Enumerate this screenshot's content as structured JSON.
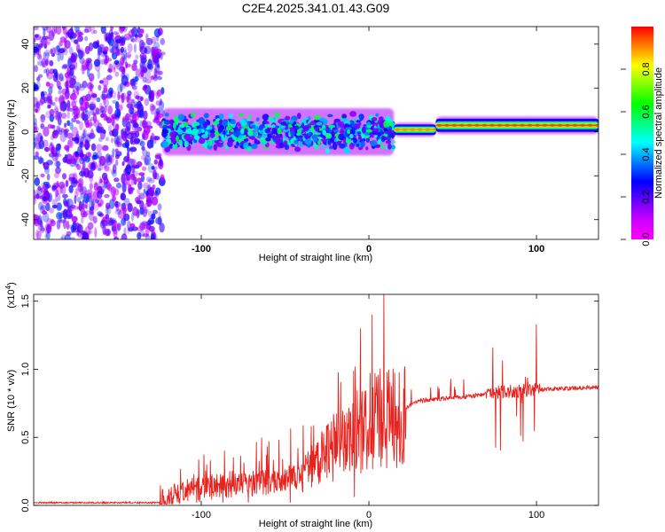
{
  "title": "C2E4.2025.341.01.43.G09",
  "chart_data": [
    {
      "type": "heatmap",
      "name": "spectrogram",
      "xlabel": "Height of straight line (km)",
      "ylabel": "Frequency (Hz)",
      "xlim": [
        -200,
        137
      ],
      "ylim": [
        -49,
        48
      ],
      "xticks": [
        -100,
        0,
        100
      ],
      "yticks": [
        -40,
        -20,
        0,
        20,
        40
      ],
      "colorbar": {
        "label": "Normalized spectral amplitude",
        "range": [
          0,
          1
        ],
        "ticks": [
          0.0,
          0.2,
          0.4,
          0.6,
          0.8
        ],
        "tick_labels": [
          "0.0",
          "0.2",
          "0.4",
          "0.6",
          "0.8"
        ],
        "colors": [
          "#ff00ff",
          "#cc00ff",
          "#6600ff",
          "#0000ff",
          "#0080ff",
          "#00ffff",
          "#00ff80",
          "#00ff00",
          "#80ff00",
          "#ffff00",
          "#ff8000",
          "#ff0000"
        ]
      },
      "regions": [
        {
          "x_range": [
            -200,
            -123
          ],
          "y_range": [
            -49,
            48
          ],
          "description": "scattered noise",
          "amplitude": 0.1
        },
        {
          "x_range": [
            -123,
            15
          ],
          "center_hz": 0,
          "width_hz": 12,
          "amplitude": 0.35
        },
        {
          "x_range": [
            15,
            40
          ],
          "center_hz": 1,
          "width_hz": 4,
          "amplitude": 0.9
        },
        {
          "x_range": [
            40,
            137
          ],
          "center_hz": 3,
          "width_hz": 5,
          "amplitude": 0.95
        }
      ]
    },
    {
      "type": "line",
      "name": "snr",
      "xlabel": "Height of straight line (km)",
      "ylabel": "SNR (10 * v/v)",
      "scale_label": "(x10",
      "scale_exponent": "4",
      "xlim": [
        -200,
        137
      ],
      "ylim": [
        0,
        1.55
      ],
      "xticks": [
        -100,
        0,
        100
      ],
      "yticks": [
        0.0,
        0.5,
        1.0,
        1.5
      ],
      "ytick_labels": [
        "0.0",
        "0.5",
        "1.0",
        "1.5"
      ],
      "line_color": "#e8231e",
      "envelope": [
        {
          "x": -200,
          "y": 0.02
        },
        {
          "x": -125,
          "y": 0.02
        },
        {
          "x": -110,
          "y": 0.1
        },
        {
          "x": -80,
          "y": 0.15
        },
        {
          "x": -60,
          "y": 0.17
        },
        {
          "x": -40,
          "y": 0.22
        },
        {
          "x": -20,
          "y": 0.45
        },
        {
          "x": -5,
          "y": 0.55
        },
        {
          "x": 10,
          "y": 0.65
        },
        {
          "x": 20,
          "y": 0.7
        },
        {
          "x": 22,
          "y": 0.72
        },
        {
          "x": 30,
          "y": 0.77
        },
        {
          "x": 40,
          "y": 0.78
        },
        {
          "x": 60,
          "y": 0.8
        },
        {
          "x": 75,
          "y": 0.83
        },
        {
          "x": 100,
          "y": 0.85
        },
        {
          "x": 120,
          "y": 0.86
        },
        {
          "x": 137,
          "y": 0.87
        }
      ],
      "peaks": [
        {
          "x": -5,
          "y": 1.3
        },
        {
          "x": 2,
          "y": 1.4
        },
        {
          "x": 9,
          "y": 1.57
        },
        {
          "x": 74,
          "y": 1.16
        },
        {
          "x": 100,
          "y": 1.33
        }
      ]
    }
  ]
}
